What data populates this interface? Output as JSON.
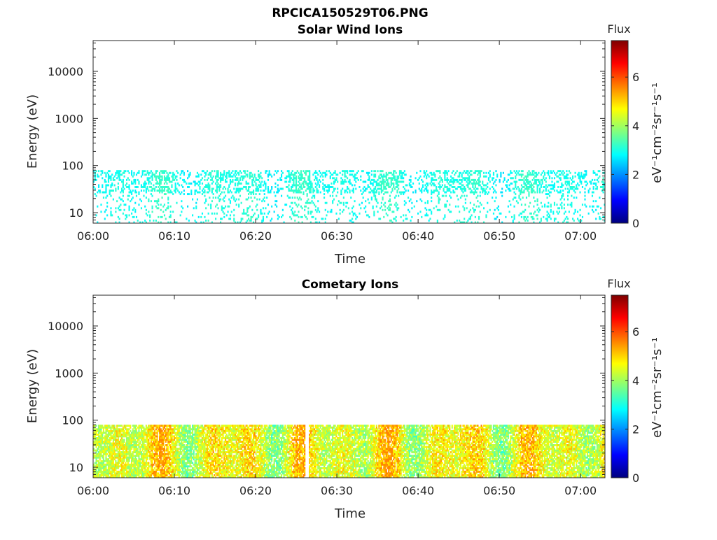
{
  "figure_title": "RPCICA150529T06.PNG",
  "colorbar_label": "Flux",
  "colorbar_units": "eV⁻¹cm⁻²sr⁻¹s⁻¹",
  "chart_data": [
    {
      "type": "heatmap",
      "title": "Solar Wind Ions",
      "xlabel": "Time",
      "ylabel": "Energy (eV)",
      "y_scale": "log",
      "ylim": [
        6,
        45000
      ],
      "x_range": [
        "06:00",
        "07:03"
      ],
      "xticks": [
        "06:00",
        "06:10",
        "06:20",
        "06:30",
        "06:40",
        "06:50",
        "07:00"
      ],
      "yticks": [
        10,
        100,
        1000,
        10000
      ],
      "ytick_labels": [
        "10",
        "100",
        "1000",
        "10000"
      ],
      "colorbar": {
        "label": "Flux",
        "range": [
          0,
          7.5
        ],
        "ticks": [
          0,
          2,
          4,
          6
        ],
        "colormap": "jet"
      },
      "data_energy_range": [
        6,
        80
      ],
      "typical_flux_range": [
        2.5,
        3.3
      ]
    },
    {
      "type": "heatmap",
      "title": "Cometary Ions",
      "xlabel": "Time",
      "ylabel": "Energy (eV)",
      "y_scale": "log",
      "ylim": [
        6,
        45000
      ],
      "x_range": [
        "06:00",
        "07:03"
      ],
      "xticks": [
        "06:00",
        "06:10",
        "06:20",
        "06:30",
        "06:40",
        "06:50",
        "07:00"
      ],
      "yticks": [
        10,
        100,
        1000,
        10000
      ],
      "ytick_labels": [
        "10",
        "100",
        "1000",
        "10000"
      ],
      "colorbar": {
        "label": "Flux",
        "range": [
          0,
          7.5
        ],
        "ticks": [
          0,
          2,
          4,
          6
        ],
        "colormap": "jet"
      },
      "data_energy_range": [
        6,
        80
      ],
      "typical_flux_range": [
        3,
        5.6
      ],
      "data_gaps": [
        [
          "06:26",
          "06:26.5"
        ]
      ]
    }
  ],
  "colors": {
    "axis": "#262626",
    "background": "#ffffff"
  }
}
